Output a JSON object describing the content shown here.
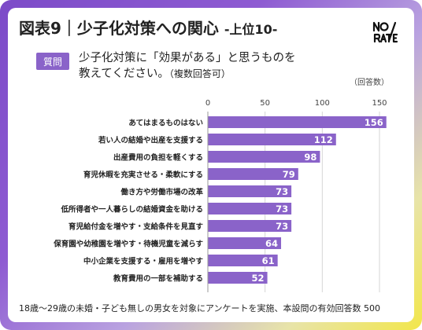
{
  "header": {
    "title": "図表9｜少子化対策への関心",
    "subtitle": "-上位10-",
    "logo_text": "NO RATE"
  },
  "question": {
    "badge": "質問",
    "line1": "少子化対策に「効果がある」と思うものを",
    "line2": "教えてください。",
    "note": "（複数回答可）"
  },
  "chart_data": {
    "type": "bar",
    "orientation": "horizontal",
    "unit_label": "（回答数）",
    "categories": [
      "あてはまるものはない",
      "若い人の結婚や出産を支援する",
      "出産費用の負担を軽くする",
      "育児休暇を充実させる・柔軟にする",
      "働き方や労働市場の改革",
      "低所得者や一人暮らしの結婚資金を助ける",
      "育児給付金を増やす・支給条件を見直す",
      "保育園や幼稚園を増やす・待機児童を減らす",
      "中小企業を支援する・雇用を増やす",
      "教育費用の一部を補助する"
    ],
    "values": [
      156,
      112,
      98,
      79,
      73,
      73,
      73,
      64,
      61,
      52
    ],
    "xlim": [
      0,
      150
    ],
    "ticks": [
      0,
      50,
      100,
      150
    ],
    "bar_color": "#8a63c9",
    "grid": true
  },
  "footer": {
    "note": "18歳～29歳の未婚・子ども無しの男女を対象にアンケートを実施、本設問の有効回答数 500"
  },
  "colors": {
    "accent": "#8a63c9",
    "gradient_start": "#7c4bc8",
    "gradient_end": "#f2e64a"
  }
}
